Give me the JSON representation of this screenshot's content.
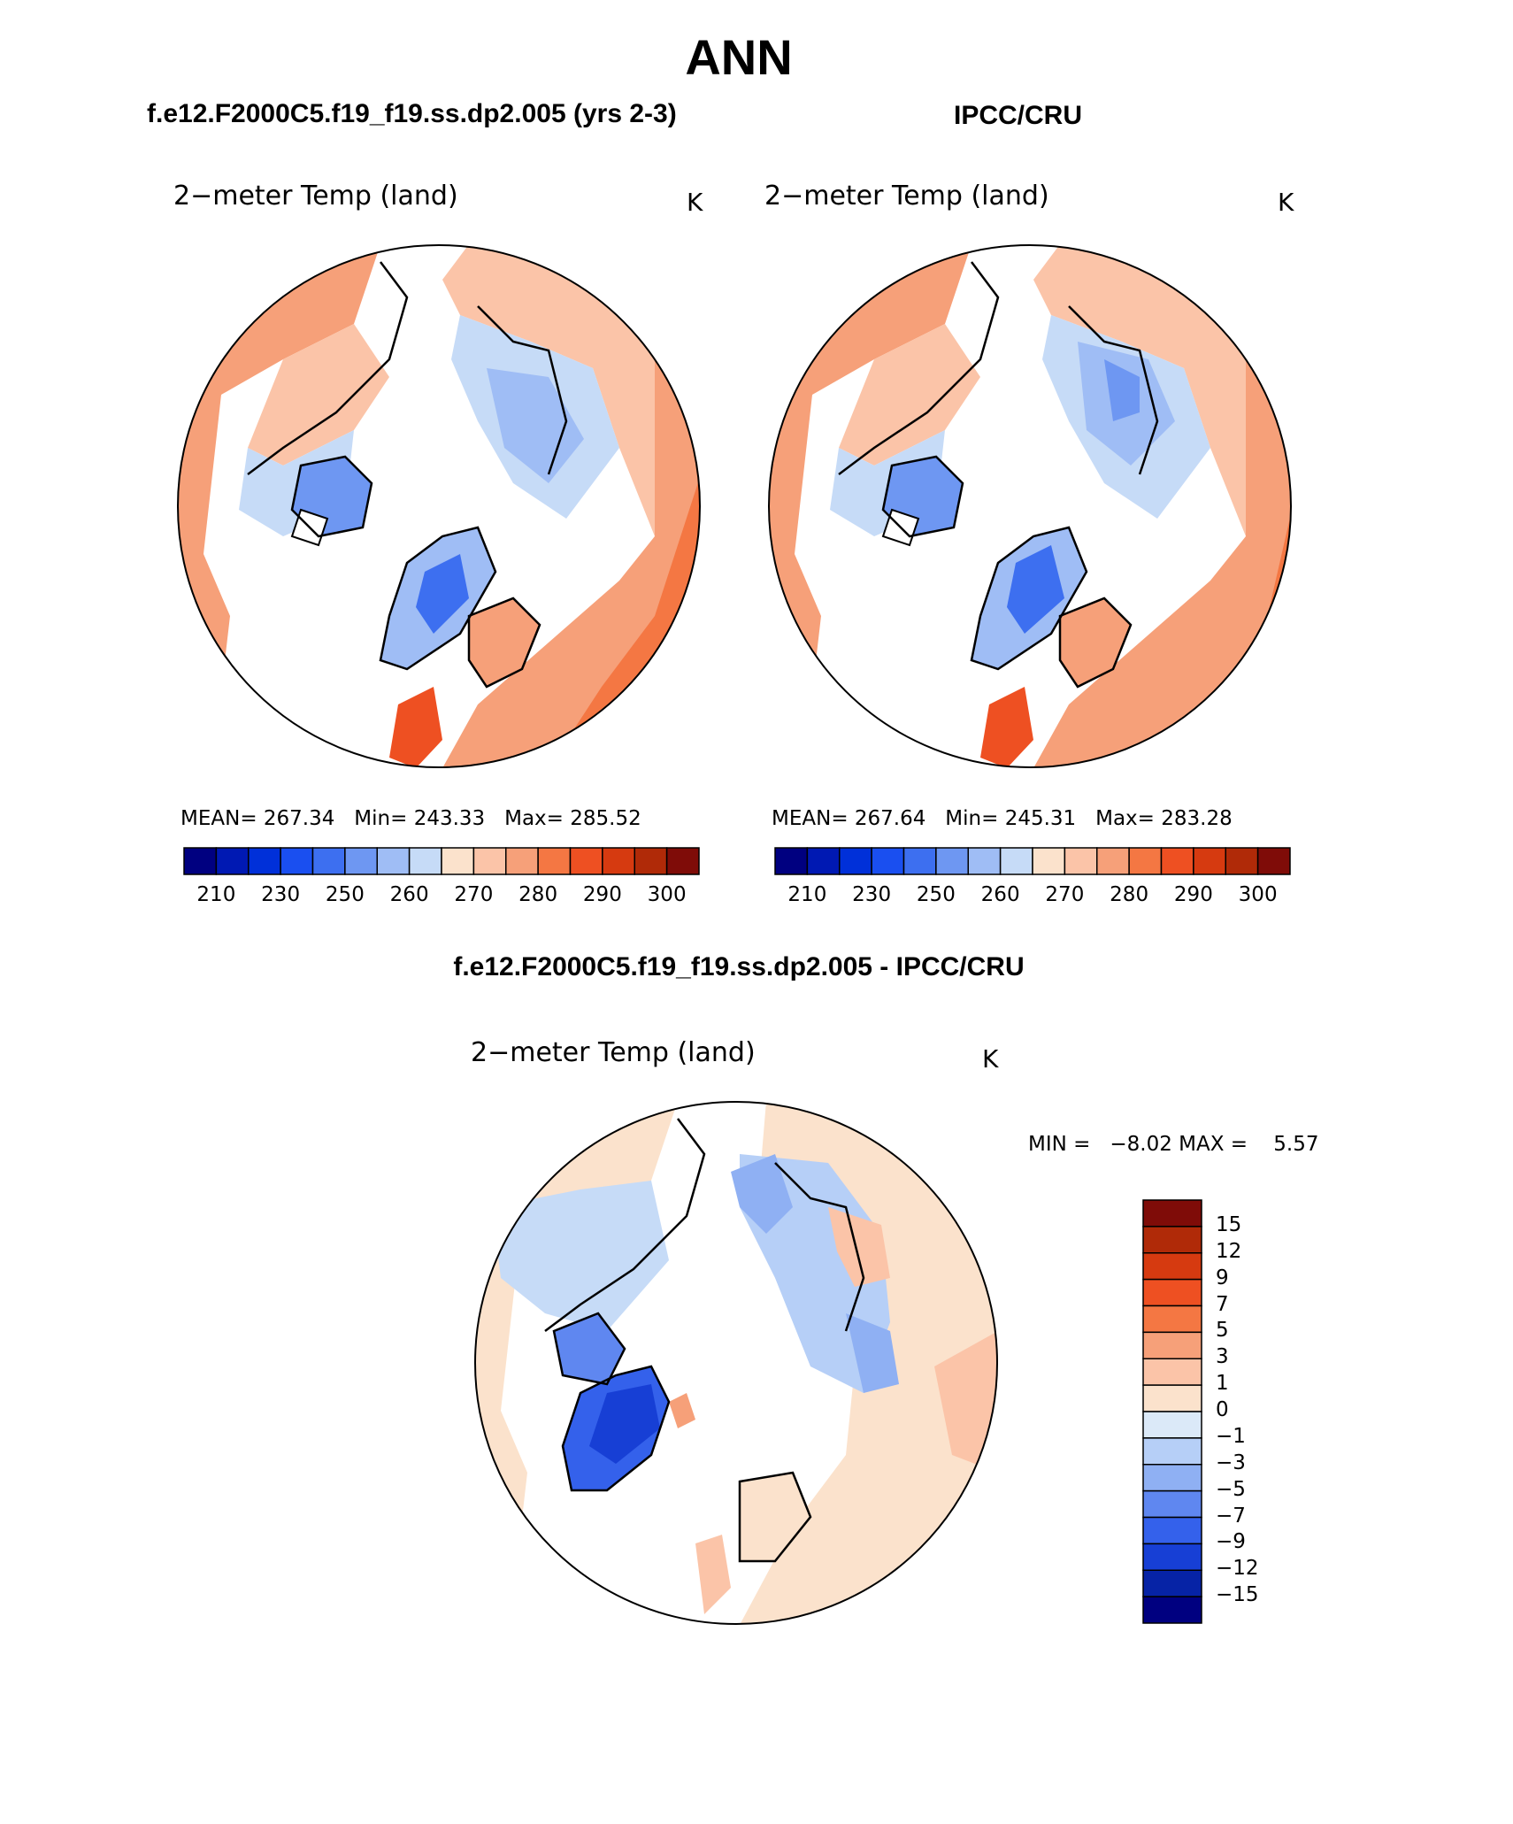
{
  "header": {
    "title": "ANN",
    "left_case": "f.e12.F2000C5.f19_f19.ss.dp2.005 (yrs 2-3)",
    "right_case": "IPCC/CRU",
    "diff_case": "f.e12.F2000C5.f19_f19.ss.dp2.005 - IPCC/CRU"
  },
  "panels": [
    {
      "variable": "2−meter Temp (land)",
      "units": "K",
      "stats": "MEAN= 267.34   Min= 243.33   Max= 285.52"
    },
    {
      "variable": "2−meter Temp (land)",
      "units": "K",
      "stats": "MEAN= 267.64   Min= 245.31   Max= 283.28"
    }
  ],
  "diff_panel": {
    "variable": "2−meter Temp (land)",
    "units": "K",
    "stats": "MIN =   −8.02 MAX =    5.57"
  },
  "colorbar_abs": {
    "colors": [
      "#000080",
      "#0019b3",
      "#0030d9",
      "#1a4ff0",
      "#3d6ff0",
      "#6e97f2",
      "#9fbdf5",
      "#c6dbf7",
      "#fbe2cc",
      "#fbc4a8",
      "#f6a079",
      "#f47743",
      "#ee5022",
      "#d63a10",
      "#b02a08",
      "#7f0c08"
    ],
    "labels": [
      "210",
      "230",
      "250",
      "260",
      "270",
      "280",
      "290",
      "300"
    ]
  },
  "colorbar_diff": {
    "colors": [
      "#7f0c08",
      "#b02a08",
      "#d63a10",
      "#ee5022",
      "#f47743",
      "#f6a079",
      "#fbc4a8",
      "#fbe2cc",
      "#dbe9f8",
      "#b6cff7",
      "#8fb0f3",
      "#5f87f0",
      "#3461eb",
      "#173fd5",
      "#0623a6",
      "#000080"
    ],
    "labels": [
      "15",
      "12",
      "9",
      "7",
      "5",
      "3",
      "1",
      "0",
      "−1",
      "−3",
      "−5",
      "−7",
      "−9",
      "−12",
      "−15"
    ]
  }
}
